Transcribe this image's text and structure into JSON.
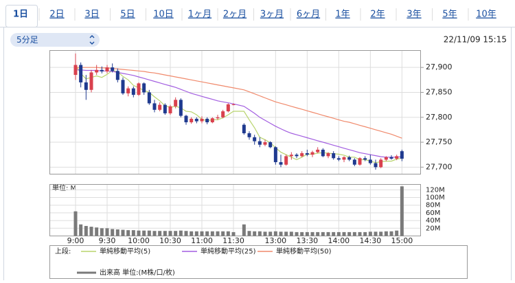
{
  "tabs": [
    "1日",
    "2日",
    "3日",
    "5日",
    "10日",
    "1ヶ月",
    "2ヶ月",
    "3ヶ月",
    "6ヶ月",
    "1年",
    "2年",
    "3年",
    "5年",
    "10年"
  ],
  "selector": "5分足",
  "timestamp": "22/11/09 15:15",
  "chart_data": {
    "type": "candlestick",
    "categories": [
      "9:00",
      "9:05",
      "9:10",
      "9:15",
      "9:20",
      "9:25",
      "9:30",
      "9:35",
      "9:40",
      "9:45",
      "9:50",
      "9:55",
      "10:00",
      "10:05",
      "10:10",
      "10:15",
      "10:20",
      "10:25",
      "10:30",
      "10:35",
      "10:40",
      "10:45",
      "10:50",
      "10:55",
      "11:00",
      "11:05",
      "11:10",
      "11:15",
      "11:20",
      "11:25",
      "11:30",
      "12:30",
      "12:35",
      "12:40",
      "12:45",
      "12:50",
      "12:55",
      "13:00",
      "13:05",
      "13:10",
      "13:15",
      "13:20",
      "13:25",
      "13:30",
      "13:35",
      "13:40",
      "13:45",
      "13:50",
      "13:55",
      "14:00",
      "14:05",
      "14:10",
      "14:15",
      "14:20",
      "14:25",
      "14:30",
      "14:35",
      "14:40",
      "14:45",
      "14:50",
      "14:55",
      "15:00"
    ],
    "ohlc": [
      [
        27885,
        27928,
        27875,
        27905
      ],
      [
        27905,
        27910,
        27860,
        27870
      ],
      [
        27870,
        27885,
        27835,
        27855
      ],
      [
        27855,
        27895,
        27850,
        27890
      ],
      [
        27890,
        27905,
        27885,
        27895
      ],
      [
        27895,
        27902,
        27888,
        27892
      ],
      [
        27892,
        27905,
        27888,
        27900
      ],
      [
        27900,
        27908,
        27890,
        27893
      ],
      [
        27893,
        27898,
        27870,
        27875
      ],
      [
        27875,
        27880,
        27845,
        27848
      ],
      [
        27848,
        27862,
        27842,
        27858
      ],
      [
        27858,
        27862,
        27840,
        27845
      ],
      [
        27845,
        27870,
        27843,
        27868
      ],
      [
        27868,
        27870,
        27845,
        27850
      ],
      [
        27850,
        27855,
        27825,
        27828
      ],
      [
        27828,
        27835,
        27810,
        27815
      ],
      [
        27815,
        27830,
        27812,
        27825
      ],
      [
        27825,
        27828,
        27805,
        27808
      ],
      [
        27808,
        27825,
        27805,
        27822
      ],
      [
        27822,
        27840,
        27818,
        27835
      ],
      [
        27835,
        27838,
        27800,
        27803
      ],
      [
        27803,
        27805,
        27785,
        27790
      ],
      [
        27790,
        27800,
        27787,
        27797
      ],
      [
        27797,
        27800,
        27788,
        27792
      ],
      [
        27792,
        27802,
        27788,
        27797
      ],
      [
        27797,
        27800,
        27786,
        27790
      ],
      [
        27790,
        27800,
        27788,
        27798
      ],
      [
        27798,
        27805,
        27795,
        27800
      ],
      [
        27800,
        27815,
        27798,
        27812
      ],
      [
        27812,
        27828,
        27810,
        27826
      ],
      [
        27826,
        27828,
        27824,
        27826
      ],
      [
        27785,
        27788,
        27765,
        27768
      ],
      [
        27768,
        27772,
        27755,
        27760
      ],
      [
        27760,
        27765,
        27745,
        27752
      ],
      [
        27752,
        27760,
        27740,
        27745
      ],
      [
        27745,
        27755,
        27742,
        27750
      ],
      [
        27750,
        27752,
        27738,
        27740
      ],
      [
        27740,
        27742,
        27705,
        27710
      ],
      [
        27710,
        27725,
        27700,
        27705
      ],
      [
        27705,
        27725,
        27703,
        27722
      ],
      [
        27722,
        27730,
        27715,
        27725
      ],
      [
        27725,
        27728,
        27718,
        27722
      ],
      [
        27722,
        27732,
        27720,
        27728
      ],
      [
        27728,
        27735,
        27722,
        27725
      ],
      [
        27725,
        27733,
        27720,
        27730
      ],
      [
        27730,
        27740,
        27728,
        27735
      ],
      [
        27735,
        27738,
        27720,
        27722
      ],
      [
        27722,
        27730,
        27718,
        27728
      ],
      [
        27728,
        27732,
        27715,
        27718
      ],
      [
        27718,
        27722,
        27712,
        27715
      ],
      [
        27715,
        27722,
        27710,
        27720
      ],
      [
        27720,
        27723,
        27712,
        27715
      ],
      [
        27715,
        27718,
        27702,
        27705
      ],
      [
        27705,
        27720,
        27703,
        27718
      ],
      [
        27718,
        27722,
        27712,
        27715
      ],
      [
        27715,
        27725,
        27705,
        27708
      ],
      [
        27708,
        27715,
        27695,
        27700
      ],
      [
        27700,
        27718,
        27698,
        27715
      ],
      [
        27715,
        27722,
        27712,
        27720
      ],
      [
        27720,
        27724,
        27715,
        27717
      ],
      [
        27717,
        27725,
        27714,
        27722
      ],
      [
        27732,
        27735,
        27712,
        27717
      ]
    ],
    "up_color": "#d9414e",
    "down_color": "#1f3a8f",
    "ylim": [
      27686,
      27934
    ],
    "yticks": [
      {
        "value": 27700,
        "label": "27,700"
      },
      {
        "value": 27750,
        "label": "27,750"
      },
      {
        "value": 27800,
        "label": "27,800"
      },
      {
        "value": 27850,
        "label": "27,850"
      },
      {
        "value": 27900,
        "label": "27,900"
      }
    ],
    "xticks": [
      "9:00",
      "9:30",
      "10:00",
      "10:30",
      "11:00",
      "11:30",
      "13:00",
      "13:30",
      "14:00",
      "14:30",
      "15:00"
    ],
    "grid": true,
    "legend_upper": "上段:",
    "series": [
      {
        "name": "単純移動平均(5)",
        "color": "#b8d46c",
        "values": [
          27905,
          27888,
          27877,
          27880,
          27883,
          27880,
          27886,
          27894,
          27891,
          27882,
          27875,
          27864,
          27859,
          27854,
          27850,
          27841,
          27833,
          27823,
          27820,
          27822,
          27819,
          27812,
          27811,
          27805,
          27796,
          27793,
          27795,
          27795,
          27799,
          27805,
          27812,
          27812,
          27795,
          27779,
          27760,
          27755,
          27749,
          27739,
          27730,
          27725,
          27720,
          27715,
          27720,
          27726,
          27726,
          27728,
          27729,
          27728,
          27727,
          27726,
          27724,
          27720,
          27720,
          27715,
          27715,
          27712,
          27709,
          27711,
          27712,
          27712,
          27716,
          27718
        ]
      },
      {
        "name": "単純移動平均(25)",
        "color": "#a25de0",
        "values": [
          27895,
          27895,
          27894,
          27894,
          27894,
          27893,
          27893,
          27892,
          27890,
          27888,
          27886,
          27884,
          27881,
          27878,
          27875,
          27872,
          27869,
          27866,
          27863,
          27860,
          27856,
          27852,
          27848,
          27845,
          27842,
          27839,
          27836,
          27833,
          27831,
          27829,
          27827,
          27822,
          27815,
          27808,
          27800,
          27794,
          27788,
          27782,
          27777,
          27772,
          27768,
          27765,
          27762,
          27759,
          27756,
          27753,
          27750,
          27747,
          27744,
          27741,
          27738,
          27735,
          27732,
          27729,
          27727,
          27725,
          27723,
          27721,
          27720,
          27720,
          27720,
          27721
        ]
      },
      {
        "name": "単純移動平均(50)",
        "color": "#f0896b",
        "values": [
          27900,
          27900,
          27900,
          27900,
          27900,
          27899,
          27899,
          27898,
          27897,
          27896,
          27895,
          27894,
          27893,
          27892,
          27890,
          27889,
          27887,
          27885,
          27883,
          27881,
          27879,
          27877,
          27875,
          27873,
          27871,
          27869,
          27867,
          27865,
          27863,
          27861,
          27859,
          27855,
          27851,
          27847,
          27843,
          27839,
          27835,
          27831,
          27828,
          27825,
          27822,
          27819,
          27816,
          27813,
          27810,
          27807,
          27804,
          27801,
          27798,
          27795,
          27792,
          27790,
          27787,
          27784,
          27781,
          27778,
          27775,
          27772,
          27769,
          27766,
          27762,
          27758
        ]
      }
    ],
    "volume": {
      "label": "単位: M",
      "legend_lower": "下段:",
      "name": "出来高 単位:(M株/口/枚)",
      "color": "#7a7a7a",
      "values": [
        64,
        30,
        26,
        24,
        22,
        20,
        20,
        18,
        17,
        16,
        15,
        15,
        14,
        14,
        14,
        13,
        13,
        13,
        13,
        13,
        14,
        13,
        12,
        12,
        12,
        12,
        12,
        12,
        12,
        12,
        10,
        30,
        13,
        12,
        12,
        11,
        11,
        12,
        11,
        11,
        11,
        10,
        10,
        10,
        10,
        10,
        10,
        10,
        10,
        10,
        10,
        10,
        10,
        10,
        10,
        11,
        11,
        11,
        12,
        12,
        14,
        129
      ],
      "ylim": [
        0,
        134
      ],
      "yticks": [
        {
          "value": 20,
          "label": "20M"
        },
        {
          "value": 40,
          "label": "40M"
        },
        {
          "value": 60,
          "label": "60M"
        },
        {
          "value": 80,
          "label": "80M"
        },
        {
          "value": 100,
          "label": "100M"
        },
        {
          "value": 120,
          "label": "120M"
        }
      ]
    }
  }
}
